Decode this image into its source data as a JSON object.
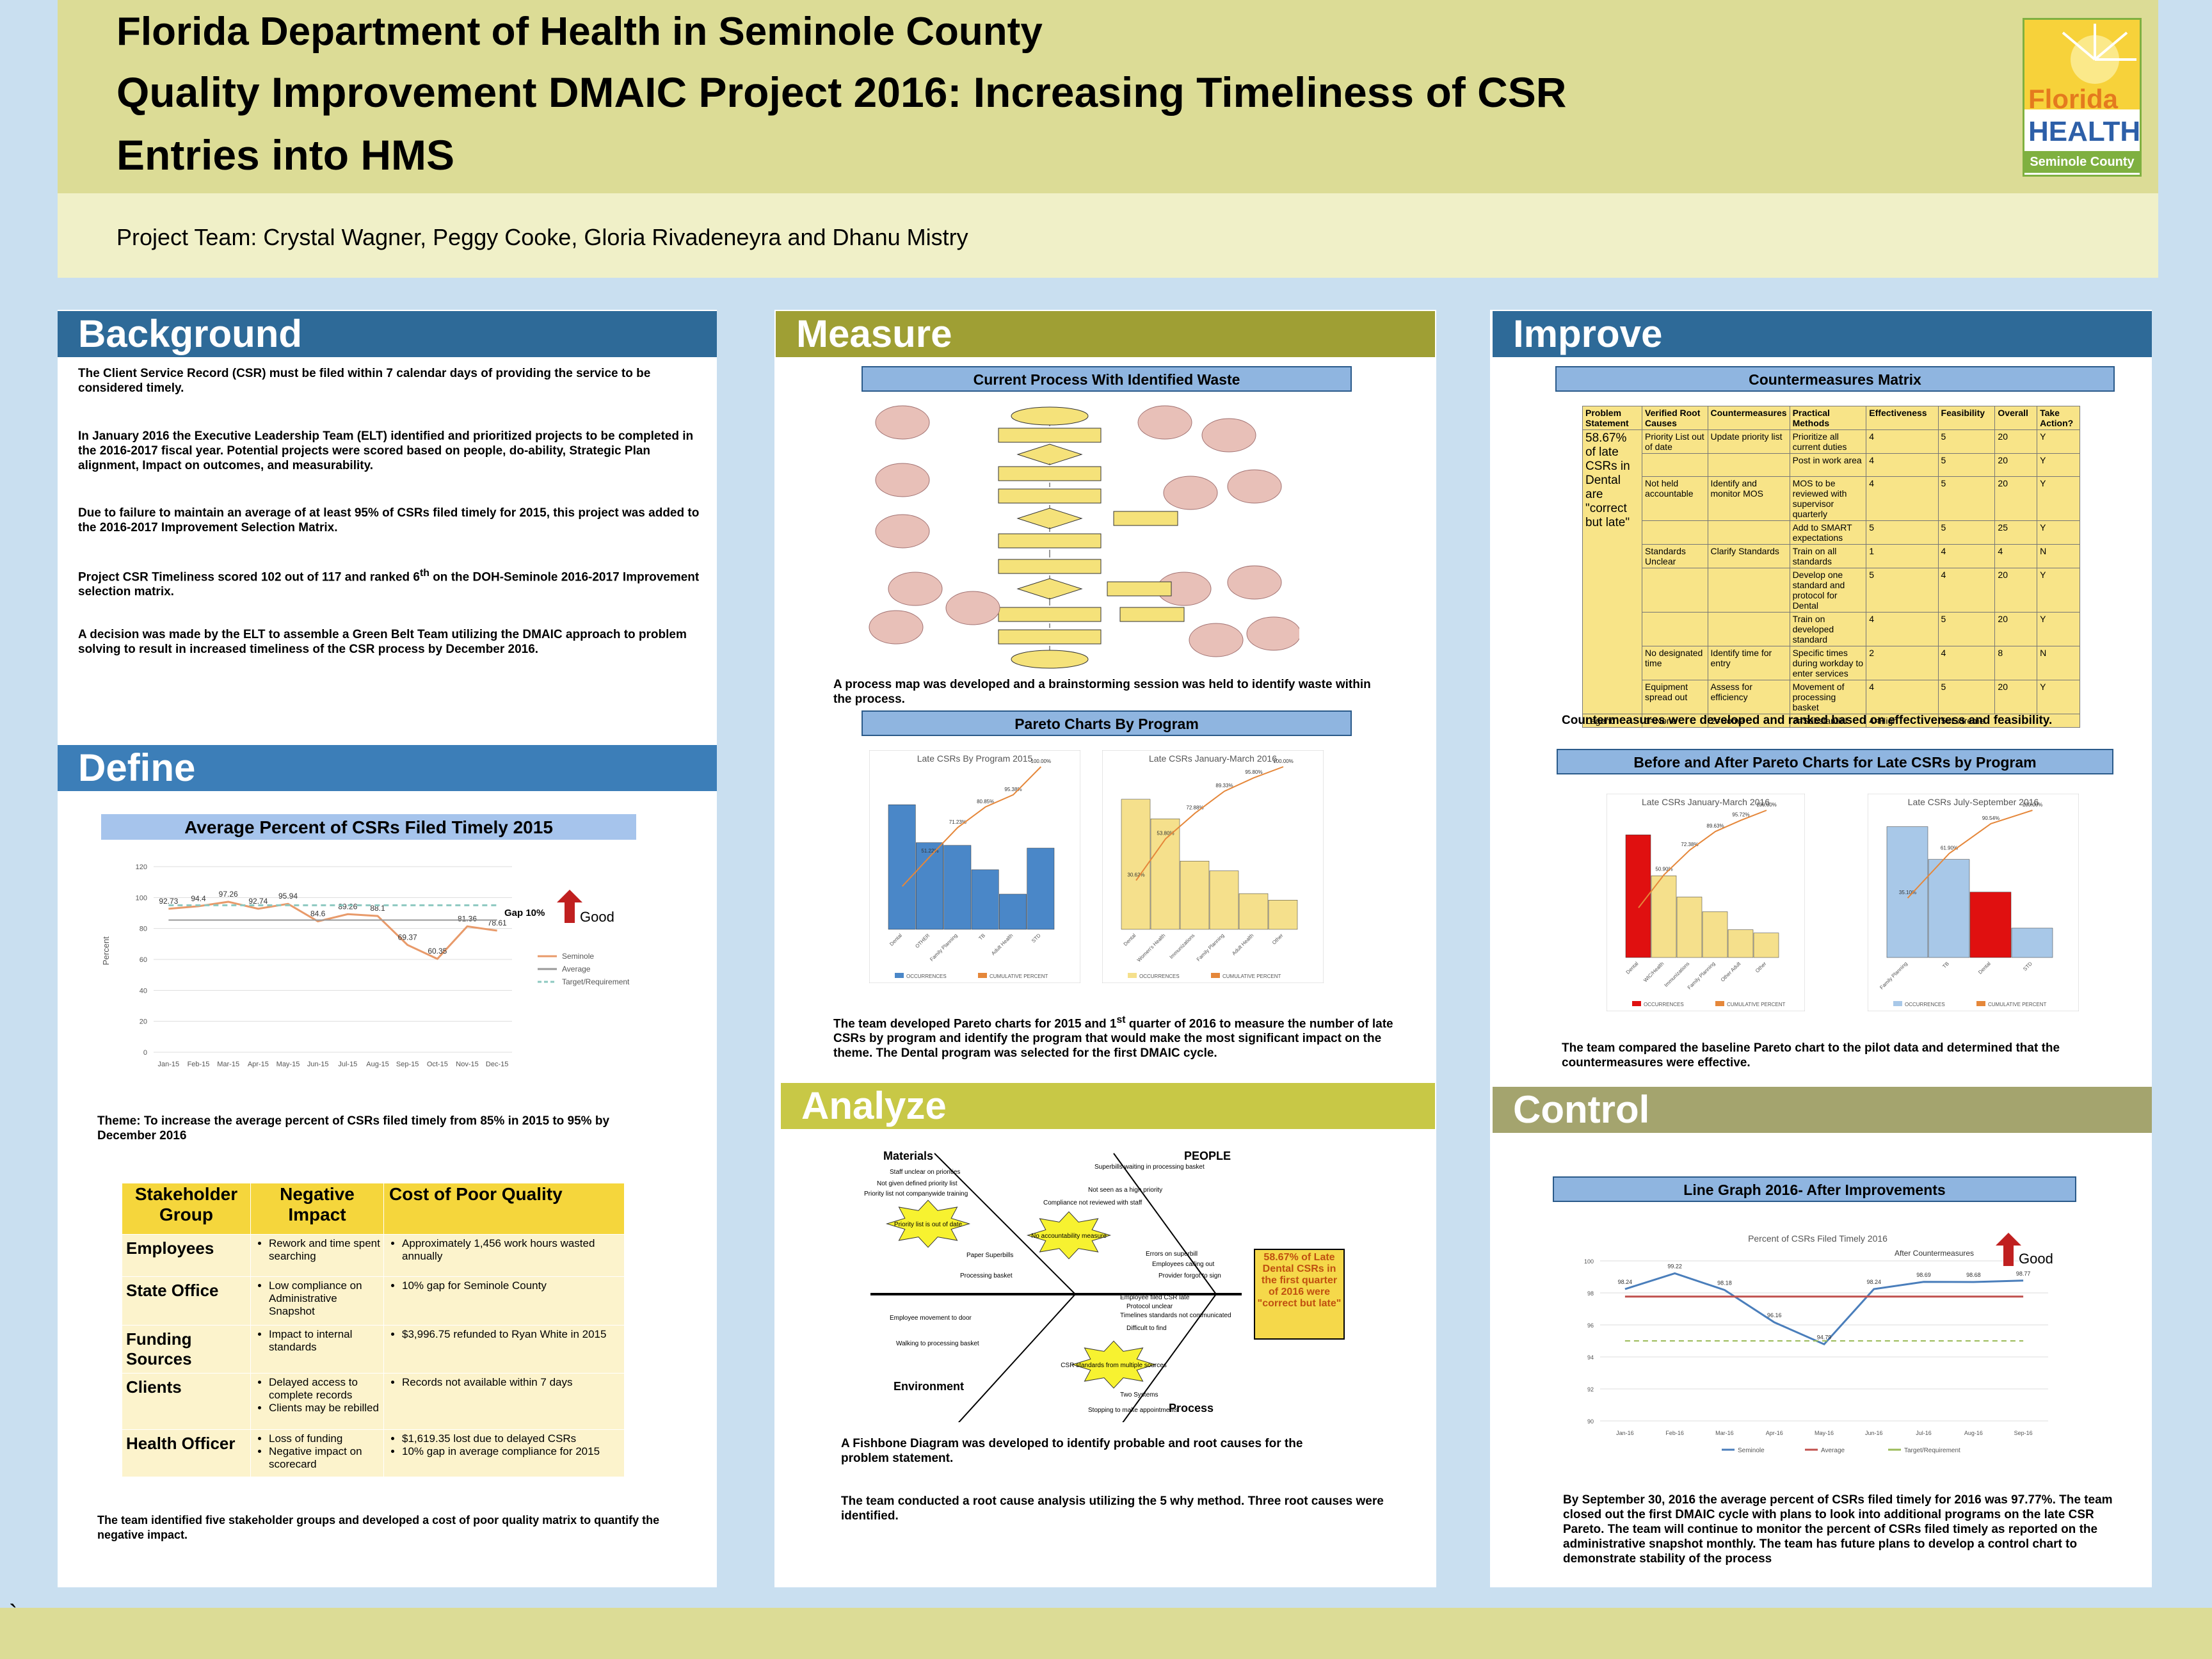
{
  "header": {
    "line1": "Florida Department of Health in Seminole County",
    "line2": "Quality Improvement DMAIC Project 2016: Increasing Timeliness of CSR",
    "line3": "Entries into HMS",
    "team": "Project Team: Crystal Wagner, Peggy Cooke, Gloria Rivadeneyra and Dhanu Mistry"
  },
  "logo": {
    "florida": "Florida",
    "health": "HEALTH",
    "county": "Seminole County"
  },
  "background": {
    "title": "Background",
    "p1": "The Client Service Record (CSR) must be filed within 7 calendar days of providing the service to be considered timely.",
    "p2": "In January 2016 the Executive Leadership Team (ELT) identified and prioritized projects to be completed in the 2016-2017 fiscal year. Potential projects were scored based on people, do-ability, Strategic Plan alignment, Impact on outcomes, and measurability.",
    "p3": "Due to failure to maintain an average of at least 95% of CSRs filed timely for 2015, this project was added to the 2016-2017 Improvement Selection Matrix.",
    "p4a": "Project CSR Timeliness scored 102 out of 117 and ranked 6",
    "p4sup": "th",
    "p4b": " on the DOH-Seminole 2016-2017 Improvement selection matrix.",
    "p5": "A decision was made by the ELT to assemble a Green Belt Team utilizing the DMAIC approach to problem solving to result in increased timeliness of the CSR process by December 2016."
  },
  "define": {
    "title": "Define",
    "chart_title": "Average Percent of CSRs Filed Timely 2015",
    "gap": "Gap 10%",
    "good": "Good",
    "theme": "Theme: To increase the average percent of CSRs filed timely from 85% in 2015 to 95% by December 2016",
    "closing": "The team identified five stakeholder groups and developed a cost of poor quality matrix to quantify the negative impact.",
    "table_headers": [
      "Stakeholder Group",
      "Negative Impact",
      "Cost of Poor Quality"
    ],
    "rows": [
      {
        "group": "Employees",
        "impact": [
          "Rework and time spent searching"
        ],
        "cost": [
          "Approximately 1,456 work hours wasted annually"
        ]
      },
      {
        "group": "State Office",
        "impact": [
          "Low compliance on Administrative Snapshot"
        ],
        "cost": [
          "10% gap for Seminole County"
        ]
      },
      {
        "group": "Funding Sources",
        "impact": [
          "Impact to internal standards"
        ],
        "cost": [
          "$3,996.75 refunded to Ryan White in 2015"
        ]
      },
      {
        "group": "Clients",
        "impact": [
          "Delayed access to complete records",
          "Clients may be rebilled"
        ],
        "cost": [
          "Records not available within 7 days"
        ]
      },
      {
        "group": "Health Officer",
        "impact": [
          "Loss of funding",
          "Negative impact on scorecard"
        ],
        "cost": [
          "$1,619.35 lost due to delayed CSRs",
          "10% gap in average compliance for 2015"
        ]
      }
    ]
  },
  "measure": {
    "title": "Measure",
    "box1": "Current Process With Identified Waste",
    "text1": "A process map was developed and a brainstorming session was held to identify waste within the process.",
    "box2": "Pareto Charts By Program",
    "text2a": "The team developed Pareto charts for 2015 and 1",
    "text2sup": "st",
    "text2b": " quarter of 2016 to measure the number of late CSRs by program and identify the program that would make the most significant impact on the theme. The Dental program was selected for the first DMAIC cycle."
  },
  "analyze": {
    "title": "Analyze",
    "materials": "Materials",
    "people": "PEOPLE",
    "environment": "Environment",
    "process": "Process",
    "effect": "58.67% of Late Dental CSRs in the first quarter of 2016 were \"correct but late\"",
    "causes_top_left": [
      "Staff unclear on priorities",
      "Not given defined priority list",
      "Priority list not companywide training",
      "Paper Superbills",
      "Processing basket"
    ],
    "causes_top_right": [
      "Superbills waiting in processing basket",
      "Not seen as a high priority",
      "Compliance not reviewed with staff",
      "Errors on superbill",
      "Employees calling out",
      "Provider forgot to sign"
    ],
    "causes_bottom_left": [
      "Employee movement to door",
      "Walking to processing basket"
    ],
    "causes_bottom_right": [
      "Employee filed CSR late",
      "Protocol unclear",
      "Timelines standards not communicated",
      "Difficult to find",
      "Two Systems",
      "Stopping to make appointments"
    ],
    "bursts": [
      "Priority list is out of date",
      "No accountability measure",
      "CSR standards from multiple sources"
    ],
    "text1": "A Fishbone Diagram was developed to identify probable and root causes for the problem statement.",
    "text2": "The team conducted a root cause analysis utilizing the 5 why method. Three root causes were identified."
  },
  "improve": {
    "title": "Improve",
    "box1": "Countermeasures Matrix",
    "headers": [
      "Problem Statement",
      "Verified Root Causes",
      "Countermeasures",
      "Practical Methods",
      "Effectiveness",
      "Feasibility",
      "Overall",
      "Take Action?"
    ],
    "problem": "58.67% of late CSRs in Dental are \"correct but late\"",
    "rows": [
      {
        "cause": "Priority List out of date",
        "counter": "Update priority list",
        "method": "Prioritize all current duties",
        "eff": "4",
        "feas": "5",
        "overall": "20",
        "action": "Y"
      },
      {
        "cause": "",
        "counter": "",
        "method": "Post in work area",
        "eff": "4",
        "feas": "5",
        "overall": "20",
        "action": "Y"
      },
      {
        "cause": "Not held accountable",
        "counter": "Identify and monitor MOS",
        "method": "MOS to be reviewed with supervisor quarterly",
        "eff": "4",
        "feas": "5",
        "overall": "20",
        "action": "Y"
      },
      {
        "cause": "",
        "counter": "",
        "method": "Add to SMART expectations",
        "eff": "5",
        "feas": "5",
        "overall": "25",
        "action": "Y"
      },
      {
        "cause": "Standards Unclear",
        "counter": "Clarify Standards",
        "method": "Train on all standards",
        "eff": "1",
        "feas": "4",
        "overall": "4",
        "action": "N"
      },
      {
        "cause": "",
        "counter": "",
        "method": "Develop one standard and protocol for Dental",
        "eff": "5",
        "feas": "4",
        "overall": "20",
        "action": "Y"
      },
      {
        "cause": "",
        "counter": "",
        "method": "Train on developed standard",
        "eff": "4",
        "feas": "5",
        "overall": "20",
        "action": "Y"
      },
      {
        "cause": "No designated time",
        "counter": "Identify time for entry",
        "method": "Specific times during workday to enter services",
        "eff": "2",
        "feas": "4",
        "overall": "8",
        "action": "N"
      },
      {
        "cause": "Equipment spread out",
        "counter": "Assess for efficiency",
        "method": "Movement of processing basket",
        "eff": "4",
        "feas": "5",
        "overall": "20",
        "action": "Y"
      }
    ],
    "legend": [
      "Legend",
      "1=None",
      "2=Some",
      "3=Substantial",
      "4=High",
      "5=Extreme"
    ],
    "text1": "Countermeasures were developed and ranked based on effectiveness and feasibility.",
    "box2": "Before and After Pareto Charts for Late CSRs by Program",
    "text2": "The team compared the baseline Pareto chart to the pilot data and determined that the countermeasures were effective."
  },
  "control": {
    "title": "Control",
    "box1": "Line Graph 2016- After Improvements",
    "good": "Good",
    "text": "By September 30, 2016 the average percent of CSRs filed timely for 2016 was 97.77%. The team closed out the first DMAIC cycle with plans to look into additional programs on the late CSR Pareto. The team will continue to monitor the percent of CSRs filed timely as reported on the administrative snapshot monthly. The team has future plans to develop a control chart to demonstrate stability of the process"
  },
  "footer": {
    "mark": "`"
  },
  "chart_data": [
    {
      "type": "line",
      "title": "Average Percent of CSRs Filed Timely 2015",
      "categories": [
        "Jan-15",
        "Feb-15",
        "Mar-15",
        "Apr-15",
        "May-15",
        "Jun-15",
        "Jul-15",
        "Aug-15",
        "Sep-15",
        "Oct-15",
        "Nov-15",
        "Dec-15"
      ],
      "series": [
        {
          "name": "Seminole",
          "values": [
            92.73,
            94.4,
            97.26,
            92.74,
            95.94,
            84.6,
            89.26,
            88.1,
            69.37,
            60.35,
            81.36,
            78.61
          ]
        },
        {
          "name": "Average",
          "values": [
            85.45,
            85.45,
            85.45,
            85.45,
            85.45,
            85.45,
            85.45,
            85.45,
            85.45,
            85.45,
            85.45,
            85.45
          ]
        },
        {
          "name": "Target/Requirement",
          "values": [
            95,
            95,
            95,
            95,
            95,
            95,
            95,
            95,
            95,
            95,
            95,
            95
          ]
        }
      ],
      "ylabel": "Percent",
      "ylim": [
        0,
        120
      ],
      "yticks": [
        0,
        20,
        40,
        60,
        80,
        100,
        120
      ],
      "legend": "right"
    },
    {
      "type": "bar",
      "title": "Late CSRs By Program 2015",
      "categories": [
        "Dental",
        "OTHER",
        "Family Planning",
        "TB",
        "Adult Health",
        "STD"
      ],
      "values": [
        2300,
        1600,
        1550,
        1100,
        650,
        1500
      ],
      "cumulative_labels": [
        "",
        "51.22%",
        "71.23%",
        "80.85%",
        "95.38%",
        "100.00%"
      ],
      "legend_entries": [
        "OCCURRENCES",
        "CUMULATIVE PERCENT"
      ],
      "ylim": [
        0,
        3000
      ]
    },
    {
      "type": "bar",
      "title": "Late CSRs January-March 2016",
      "categories": [
        "Dental",
        "Women's Health",
        "Immunizations",
        "Family Planning",
        "Adult Health",
        "Other"
      ],
      "values": [
        200,
        170,
        105,
        90,
        55,
        45
      ],
      "cumulative_labels": [
        "30.62%",
        "53.80%",
        "72.88%",
        "89.33%",
        "95.80%",
        "100.00%"
      ],
      "legend_entries": [
        "OCCURRENCES",
        "CUMULATIVE PERCENT"
      ],
      "ylim": [
        0,
        250
      ]
    },
    {
      "type": "bar",
      "title": "Late CSRs January-March 2016",
      "categories": [
        "Dental",
        "WIC/Health",
        "Immunizations",
        "Family Planning",
        "Other Adult",
        "Other"
      ],
      "values": [
        75,
        50,
        37,
        28,
        17,
        15
      ],
      "cumulative_labels": [
        "",
        "50.90%",
        "72.38%",
        "89.63%",
        "95.72%",
        "100.00%"
      ],
      "legend_entries": [
        "OCCURRENCES",
        "CUMULATIVE PERCENT"
      ],
      "ylim": [
        0,
        90
      ]
    },
    {
      "type": "bar",
      "title": "Late CSRs July-September 2016",
      "categories": [
        "Family Planning",
        "TB",
        "Dental",
        "STD"
      ],
      "values": [
        80,
        60,
        40,
        18
      ],
      "cumulative_labels": [
        "35.10%",
        "61.90%",
        "90.54%",
        "100.00%"
      ],
      "legend_entries": [
        "OCCURRENCES",
        "CUMULATIVE PERCENT"
      ],
      "ylim": [
        0,
        90
      ]
    },
    {
      "type": "line",
      "title": "Percent of CSRs Filed Timely 2016",
      "categories": [
        "Jan-16",
        "Feb-16",
        "Mar-16",
        "Apr-16",
        "May-16",
        "Jun-16",
        "Jul-16",
        "Aug-16",
        "Sep-16"
      ],
      "series": [
        {
          "name": "Seminole",
          "values": [
            98.24,
            99.22,
            98.18,
            96.16,
            94.79,
            98.24,
            98.69,
            98.68,
            98.77
          ]
        },
        {
          "name": "Average",
          "values": [
            97.77,
            97.77,
            97.77,
            97.77,
            97.77,
            97.77,
            97.77,
            97.77,
            97.77
          ]
        },
        {
          "name": "Target/Requirement",
          "values": [
            95,
            95,
            95,
            95,
            95,
            95,
            95,
            95,
            95
          ]
        }
      ],
      "annotation": "After Countermeasures",
      "ylim": [
        90,
        100
      ]
    }
  ]
}
